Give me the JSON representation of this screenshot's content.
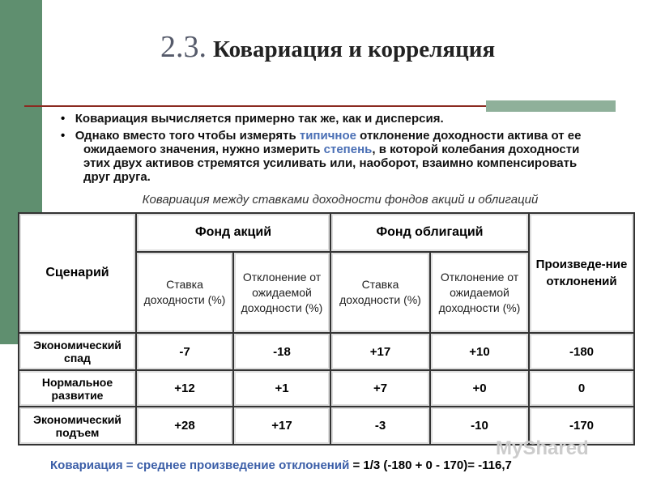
{
  "title": {
    "number": "2.3.",
    "text": "Ковариация и корреляция"
  },
  "bullets": [
    {
      "segments": [
        {
          "text": "Ковариация вычисляется примерно так же, как и дисперсия.",
          "color": "#111111"
        }
      ]
    },
    {
      "segments": [
        {
          "text": "Однако вместо того чтобы измерять ",
          "color": "#111111"
        },
        {
          "text": "типичное",
          "color": "#4a6fb5"
        },
        {
          "text": " отклонение доходности актива от ее ожидаемого значения, нужно измерить ",
          "color": "#111111"
        },
        {
          "text": "степень",
          "color": "#4a6fb5"
        },
        {
          "text": ", в которой колебания доходности этих двух активов стремятся усиливать или, наоборот, взаимно компенсировать друг друга.",
          "color": "#111111"
        }
      ]
    }
  ],
  "table": {
    "caption": "Ковариация между ставками доходности фондов акций и облигаций",
    "header": {
      "scenario": "Сценарий",
      "stock_fund": "Фонд акций",
      "bond_fund": "Фонд облигаций",
      "product": "Произведе-ние отклонений",
      "subheaders": [
        "Ставка доходности (%)",
        "Отклонение от ожидаемой доходности (%)",
        "Ставка доходности (%)",
        "Отклонение от ожидаемой доходности (%)"
      ]
    },
    "rows": [
      [
        "Экономический спад",
        "-7",
        "-18",
        "+17",
        "+10",
        "-180"
      ],
      [
        "Нормальное развитие",
        "+12",
        "+1",
        "+7",
        "+0",
        "0"
      ],
      [
        "Экономический подъем",
        "+28",
        "+17",
        "-3",
        "-10",
        "-170"
      ]
    ]
  },
  "formula": {
    "label": "Ковариация = среднее произведение отклонений",
    "text": " = 1/3 (-180 + 0 - 170)= -116,7"
  },
  "watermark": "MyShared"
}
